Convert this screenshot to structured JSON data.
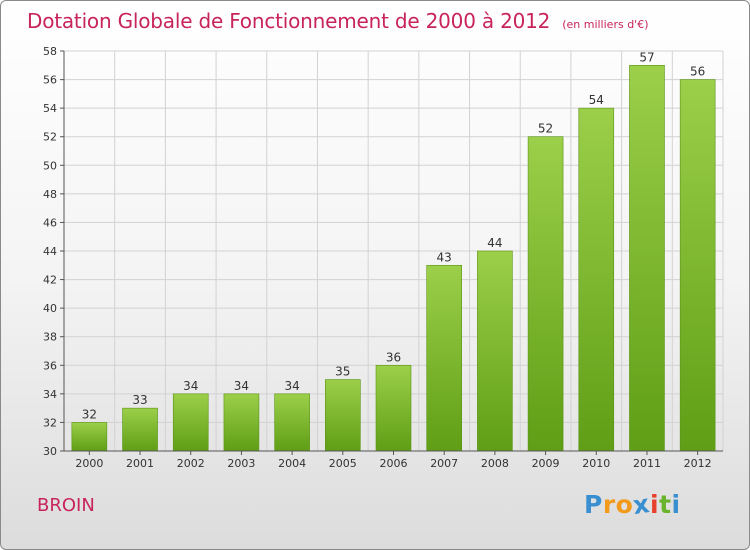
{
  "title": "Dotation Globale de Fonctionnement de 2000 à 2012",
  "unit": "(en milliers d'€)",
  "commune": "BROIN",
  "logo": {
    "letters": [
      "P",
      "r",
      "o",
      "x",
      "i",
      "t",
      "i"
    ],
    "colors": [
      "#3a8fd0",
      "#f29a1c",
      "#f29a1c",
      "#3a8fd0",
      "#e8402e",
      "#6ab42d",
      "#3a8fd0"
    ]
  },
  "chart_data": {
    "type": "bar",
    "title": "Dotation Globale de Fonctionnement de 2000 à 2012",
    "subtitle": "(en milliers d'€)",
    "categories": [
      "2000",
      "2001",
      "2002",
      "2003",
      "2004",
      "2005",
      "2006",
      "2007",
      "2008",
      "2009",
      "2010",
      "2011",
      "2012"
    ],
    "values": [
      32,
      33,
      34,
      34,
      34,
      35,
      36,
      43,
      44,
      52,
      54,
      57,
      56
    ],
    "data_labels": [
      "32",
      "33",
      "34",
      "34",
      "34",
      "35",
      "36",
      "43",
      "44",
      "52",
      "54",
      "57",
      "56"
    ],
    "y_ticks": [
      "30",
      "32",
      "34",
      "36",
      "38",
      "40",
      "42",
      "44",
      "46",
      "48",
      "50",
      "52",
      "54",
      "56",
      "58"
    ],
    "ylim": [
      30,
      58
    ],
    "grid": true,
    "colors": {
      "bar_top": "#9ccf4a",
      "bar_bottom": "#5f9e16",
      "grid": "#d2d2d2",
      "axis": "#555555"
    }
  }
}
